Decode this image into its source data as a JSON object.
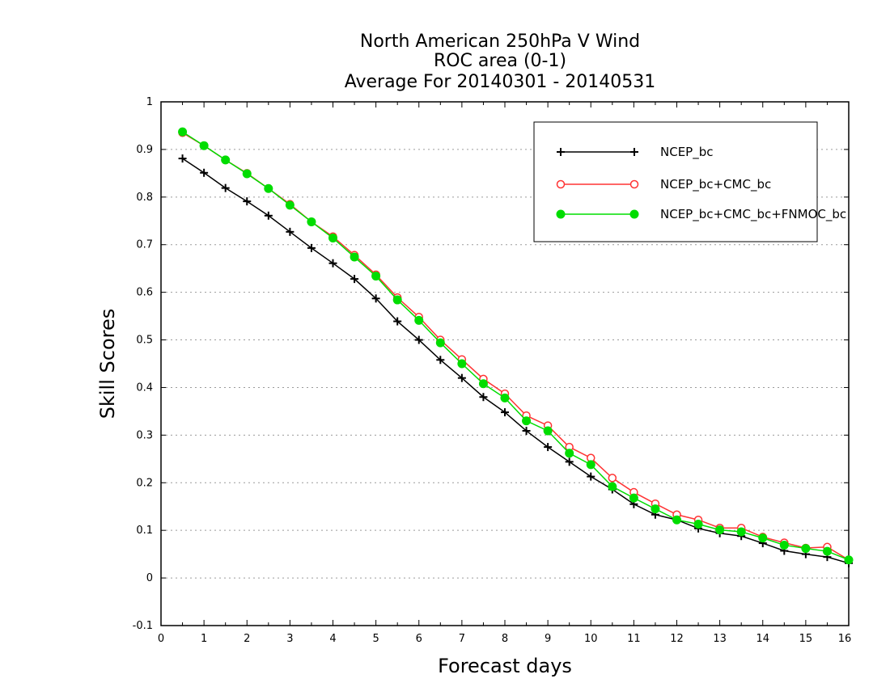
{
  "chart_data": {
    "type": "line",
    "title": [
      "North American 250hPa V Wind",
      "ROC area (0-1)",
      "Average For 20140301 - 20140531"
    ],
    "xlabel": "Forecast days",
    "ylabel": "Skill Scores",
    "xlim": [
      0,
      16
    ],
    "ylim": [
      -0.1,
      1
    ],
    "x_ticks": [
      0,
      1,
      2,
      3,
      4,
      5,
      6,
      7,
      8,
      9,
      10,
      11,
      12,
      13,
      14,
      15,
      16
    ],
    "x_tick_labels": [
      "0",
      "1",
      "2",
      "3",
      "4",
      "5",
      "6",
      "7",
      "8",
      "9",
      "10",
      "11",
      "12",
      "13",
      "14",
      "15",
      "16"
    ],
    "y_ticks": [
      -0.1,
      0,
      0.1,
      0.2,
      0.3,
      0.4,
      0.5,
      0.6,
      0.7,
      0.8,
      0.9,
      1
    ],
    "y_tick_labels": [
      "-0.1",
      "0",
      "0.1",
      "0.2",
      "0.3",
      "0.4",
      "0.5",
      "0.6",
      "0.7",
      "0.8",
      "0.9",
      "1"
    ],
    "grid": "horizontal dotted",
    "legend_position": "top-right",
    "x": [
      0.5,
      1,
      1.5,
      2,
      2.5,
      3,
      3.5,
      4,
      4.5,
      5,
      5.5,
      6,
      6.5,
      7,
      7.5,
      8,
      8.5,
      9,
      9.5,
      10,
      10.5,
      11,
      11.5,
      12,
      12.5,
      13,
      13.5,
      14,
      14.5,
      15,
      15.5,
      16
    ],
    "series": [
      {
        "name": "NCEP_bc",
        "color": "#000000",
        "marker": "plus",
        "values": [
          0.881,
          0.851,
          0.819,
          0.791,
          0.761,
          0.727,
          0.693,
          0.661,
          0.628,
          0.587,
          0.539,
          0.5,
          0.458,
          0.42,
          0.38,
          0.348,
          0.309,
          0.275,
          0.244,
          0.213,
          0.186,
          0.155,
          0.133,
          0.122,
          0.104,
          0.094,
          0.088,
          0.073,
          0.057,
          0.05,
          0.044,
          0.031
        ]
      },
      {
        "name": "NCEP_bc+CMC_bc",
        "color": "#ff3333",
        "marker": "open-circle",
        "values": [
          0.935,
          0.908,
          0.878,
          0.85,
          0.818,
          0.785,
          0.748,
          0.717,
          0.678,
          0.637,
          0.589,
          0.548,
          0.5,
          0.459,
          0.418,
          0.387,
          0.341,
          0.32,
          0.275,
          0.252,
          0.21,
          0.18,
          0.156,
          0.133,
          0.122,
          0.105,
          0.105,
          0.086,
          0.074,
          0.063,
          0.065,
          0.038
        ]
      },
      {
        "name": "NCEP_bc+CMC_bc+FNMOC_bc",
        "color": "#00dd00",
        "marker": "filled-circle",
        "values": [
          0.937,
          0.908,
          0.878,
          0.849,
          0.818,
          0.783,
          0.748,
          0.714,
          0.674,
          0.634,
          0.584,
          0.541,
          0.494,
          0.45,
          0.408,
          0.378,
          0.33,
          0.309,
          0.262,
          0.238,
          0.192,
          0.168,
          0.145,
          0.122,
          0.113,
          0.101,
          0.097,
          0.084,
          0.069,
          0.062,
          0.056,
          0.038
        ]
      }
    ]
  }
}
